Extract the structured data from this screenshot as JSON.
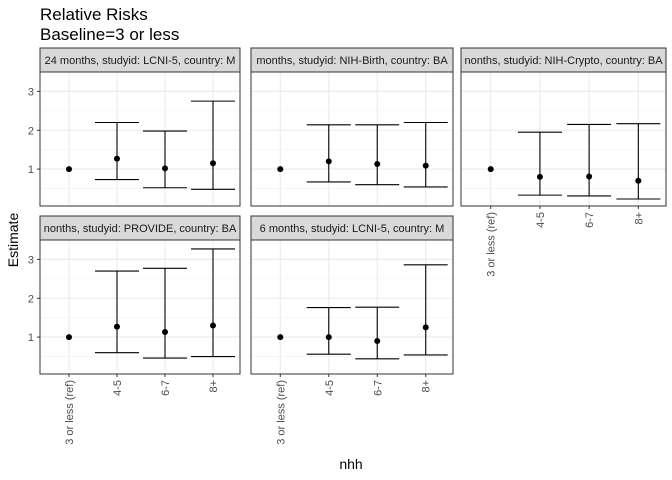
{
  "chart_data": {
    "type": "errorbar",
    "title": "Relative Risks",
    "subtitle": "Baseline=3 or less",
    "xlabel": "nhh",
    "ylabel": "Estimate",
    "categories": [
      "3 or less (ref)",
      "4-5",
      "6-7",
      "8+"
    ],
    "ylim": [
      0.05,
      3.5
    ],
    "yticks": [
      1,
      2,
      3
    ],
    "grid": true,
    "facets": [
      {
        "strip": "24 months, studyid: LCNI-5, country: M",
        "estimate": [
          1,
          1.27,
          1.02,
          1.15
        ],
        "lower": [
          1,
          0.73,
          0.52,
          0.48
        ],
        "upper": [
          1,
          2.2,
          1.98,
          2.75
        ]
      },
      {
        "strip": "months, studyid: NIH-Birth, country: BA",
        "estimate": [
          1,
          1.2,
          1.13,
          1.09
        ],
        "lower": [
          1,
          0.67,
          0.6,
          0.54
        ],
        "upper": [
          1,
          2.14,
          2.14,
          2.2
        ]
      },
      {
        "strip": "nonths, studyid: NIH-Crypto, country: BA",
        "estimate": [
          1,
          0.8,
          0.81,
          0.7
        ],
        "lower": [
          1,
          0.33,
          0.31,
          0.23
        ],
        "upper": [
          1,
          1.95,
          2.15,
          2.17
        ]
      },
      {
        "strip": "nonths, studyid: PROVIDE, country: BA",
        "estimate": [
          1,
          1.27,
          1.13,
          1.3
        ],
        "lower": [
          1,
          0.6,
          0.46,
          0.5
        ],
        "upper": [
          1,
          2.7,
          2.77,
          3.27
        ]
      },
      {
        "strip": "6 months, studyid: LCNI-5, country: M",
        "estimate": [
          1,
          1,
          0.9,
          1.25
        ],
        "lower": [
          1,
          0.56,
          0.44,
          0.54
        ],
        "upper": [
          1,
          1.76,
          1.77,
          2.86
        ]
      }
    ]
  }
}
